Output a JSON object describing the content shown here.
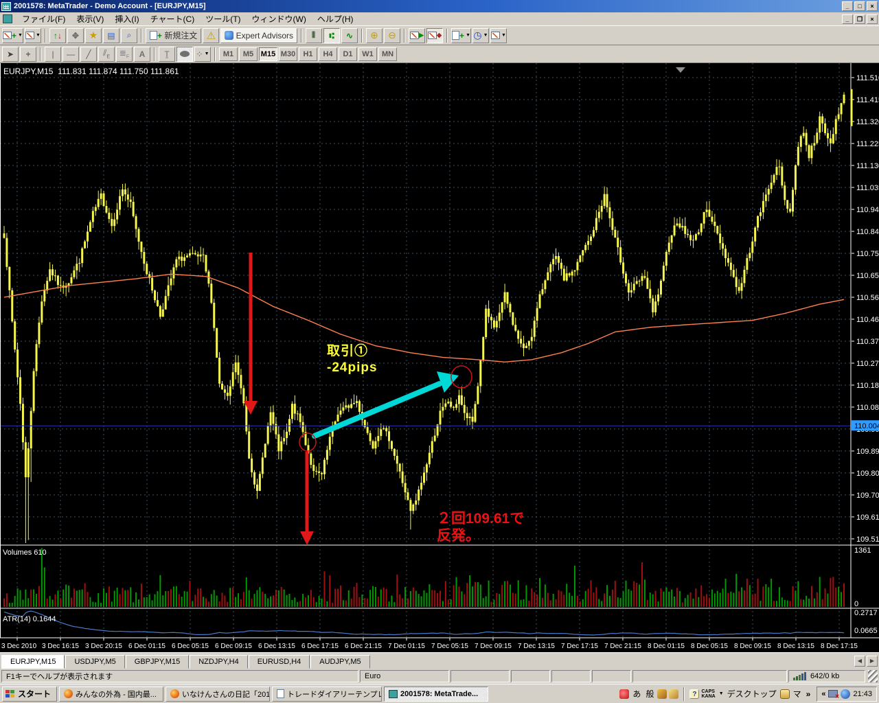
{
  "window": {
    "title": "2001578: MetaTrader - Demo Account - [EURJPY,M15]"
  },
  "menu": {
    "items": [
      "ファイル(F)",
      "表示(V)",
      "挿入(I)",
      "チャート(C)",
      "ツール(T)",
      "ウィンドウ(W)",
      "ヘルプ(H)"
    ]
  },
  "toolbar": {
    "new_order_label": "新規注文",
    "expert_advisors_label": "Expert Advisors",
    "timeframes": [
      "M1",
      "M5",
      "M15",
      "M30",
      "H1",
      "H4",
      "D1",
      "W1",
      "MN"
    ],
    "active_timeframe": "M15"
  },
  "chart": {
    "symbol_label": "EURJPY,M15",
    "ohlc": "111.831 111.874 111.750 111.861",
    "bid_price": "110.004",
    "price_ticks": [
      "111.510",
      "111.415",
      "111.320",
      "111.225",
      "111.130",
      "111.035",
      "110.940",
      "110.845",
      "110.750",
      "110.655",
      "110.560",
      "110.465",
      "110.370",
      "110.275",
      "110.180",
      "110.085",
      "109.990",
      "109.895",
      "109.800",
      "109.705",
      "109.610",
      "109.515"
    ],
    "time_labels": [
      "3 Dec 2010",
      "3 Dec 16:15",
      "3 Dec 20:15",
      "6 Dec 01:15",
      "6 Dec 05:15",
      "6 Dec 09:15",
      "6 Dec 13:15",
      "6 Dec 17:15",
      "6 Dec 21:15",
      "7 Dec 01:15",
      "7 Dec 05:15",
      "7 Dec 09:15",
      "7 Dec 13:15",
      "7 Dec 17:15",
      "7 Dec 21:15",
      "8 Dec 01:15",
      "8 Dec 05:15",
      "8 Dec 09:15",
      "8 Dec 13:15",
      "8 Dec 17:15"
    ],
    "volumes_label": "Volumes 610",
    "volumes_max": "1361",
    "volumes_min": "0",
    "atr_label": "ATR(14) 0.1644",
    "atr_max": "0.2717",
    "atr_min": "0.0665",
    "annotations": {
      "trade_line1": "取引①",
      "trade_line2": "-24pips",
      "bounce_line1": "２回109.61で",
      "bounce_line2": "反発。"
    },
    "colors": {
      "candle": "#f6f64e",
      "ma_line": "#ff8050",
      "grid": "#3e5262",
      "bid_line": "#2233bb",
      "bid_label_bg": "#2f9bff",
      "volume_up": "#009a00",
      "volume_down": "#a01010",
      "atr_line": "#4878c8",
      "annotation_red": "#e01818",
      "annotation_cyan": "#00d8d8"
    }
  },
  "chart_data": {
    "type": "candlestick",
    "symbol": "EURJPY",
    "period": "M15",
    "y_axis_range": [
      109.49,
      111.57
    ],
    "x_range": [
      "3 Dec 2010 13:00",
      "8 Dec 2010 17:15"
    ],
    "bars": 313,
    "price_path": [
      [
        0,
        110.83
      ],
      [
        3,
        110.45
      ],
      [
        6,
        110.1
      ],
      [
        8,
        109.78
      ],
      [
        9,
        109.9
      ],
      [
        11,
        110.25
      ],
      [
        14,
        110.55
      ],
      [
        17,
        110.68
      ],
      [
        21,
        110.6
      ],
      [
        24,
        110.63
      ],
      [
        28,
        110.72
      ],
      [
        33,
        110.92
      ],
      [
        36,
        111.0
      ],
      [
        40,
        110.87
      ],
      [
        44,
        111.03
      ],
      [
        47,
        110.96
      ],
      [
        49,
        110.85
      ],
      [
        53,
        110.67
      ],
      [
        58,
        110.48
      ],
      [
        61,
        110.6
      ],
      [
        64,
        110.72
      ],
      [
        69,
        110.74
      ],
      [
        74,
        110.73
      ],
      [
        77,
        110.55
      ],
      [
        80,
        110.18
      ],
      [
        83,
        110.12
      ],
      [
        86,
        110.28
      ],
      [
        89,
        110.1
      ],
      [
        91,
        109.87
      ],
      [
        94,
        109.71
      ],
      [
        97,
        109.94
      ],
      [
        99,
        110.06
      ],
      [
        102,
        109.9
      ],
      [
        105,
        109.97
      ],
      [
        107,
        110.09
      ],
      [
        110,
        110.02
      ],
      [
        112,
        109.93
      ],
      [
        115,
        109.8
      ],
      [
        118,
        109.79
      ],
      [
        121,
        109.95
      ],
      [
        124,
        110.06
      ],
      [
        128,
        110.09
      ],
      [
        131,
        110.11
      ],
      [
        134,
        110.0
      ],
      [
        137,
        109.92
      ],
      [
        140,
        110.0
      ],
      [
        143,
        109.95
      ],
      [
        146,
        109.84
      ],
      [
        149,
        109.72
      ],
      [
        151,
        109.63
      ],
      [
        153,
        109.68
      ],
      [
        156,
        109.8
      ],
      [
        159,
        109.93
      ],
      [
        162,
        110.06
      ],
      [
        165,
        110.11
      ],
      [
        167,
        110.07
      ],
      [
        169,
        110.14
      ],
      [
        171,
        110.05
      ],
      [
        174,
        110.02
      ],
      [
        176,
        110.18
      ],
      [
        179,
        110.5
      ],
      [
        182,
        110.42
      ],
      [
        186,
        110.57
      ],
      [
        190,
        110.41
      ],
      [
        193,
        110.33
      ],
      [
        196,
        110.4
      ],
      [
        199,
        110.56
      ],
      [
        202,
        110.68
      ],
      [
        205,
        110.73
      ],
      [
        208,
        110.64
      ],
      [
        212,
        110.68
      ],
      [
        215,
        110.76
      ],
      [
        218,
        110.82
      ],
      [
        221,
        110.93
      ],
      [
        223,
        111.0
      ],
      [
        226,
        110.85
      ],
      [
        229,
        110.72
      ],
      [
        232,
        110.58
      ],
      [
        235,
        110.62
      ],
      [
        238,
        110.65
      ],
      [
        241,
        110.49
      ],
      [
        244,
        110.62
      ],
      [
        247,
        110.81
      ],
      [
        250,
        110.89
      ],
      [
        253,
        110.84
      ],
      [
        256,
        110.8
      ],
      [
        259,
        110.88
      ],
      [
        261,
        110.95
      ],
      [
        264,
        110.86
      ],
      [
        267,
        110.77
      ],
      [
        270,
        110.68
      ],
      [
        273,
        110.58
      ],
      [
        276,
        110.72
      ],
      [
        280,
        110.9
      ],
      [
        283,
        111.0
      ],
      [
        286,
        111.1
      ],
      [
        288,
        111.12
      ],
      [
        290,
        110.98
      ],
      [
        292,
        110.93
      ],
      [
        295,
        111.22
      ],
      [
        297,
        111.28
      ],
      [
        299,
        111.17
      ],
      [
        301,
        111.24
      ],
      [
        303,
        111.33
      ],
      [
        305,
        111.27
      ],
      [
        307,
        111.22
      ],
      [
        309,
        111.33
      ],
      [
        312,
        111.43
      ]
    ],
    "ma_path": [
      [
        0,
        110.56
      ],
      [
        24,
        110.61
      ],
      [
        49,
        110.64
      ],
      [
        62,
        110.66
      ],
      [
        75,
        110.65
      ],
      [
        87,
        110.6
      ],
      [
        100,
        110.52
      ],
      [
        113,
        110.46
      ],
      [
        125,
        110.4
      ],
      [
        138,
        110.35
      ],
      [
        151,
        110.32
      ],
      [
        163,
        110.3
      ],
      [
        176,
        110.29
      ],
      [
        186,
        110.28
      ],
      [
        196,
        110.29
      ],
      [
        207,
        110.32
      ],
      [
        217,
        110.36
      ],
      [
        227,
        110.41
      ],
      [
        240,
        110.43
      ],
      [
        252,
        110.44
      ],
      [
        265,
        110.45
      ],
      [
        278,
        110.46
      ],
      [
        290,
        110.49
      ],
      [
        303,
        110.53
      ],
      [
        312,
        110.55
      ]
    ],
    "bid_price": 110.004,
    "volumes": {
      "max": 1361,
      "min": 0,
      "current": 610
    },
    "atr": {
      "period": 14,
      "max": 0.2717,
      "min": 0.0665,
      "current": 0.1644
    }
  },
  "tabs": {
    "items": [
      "EURJPY,M15",
      "USDJPY,M5",
      "GBPJPY,M15",
      "NZDJPY,H4",
      "EURUSD,H4",
      "AUDJPY,M5"
    ],
    "active": "EURJPY,M15"
  },
  "status_bar": {
    "help_text": "F1キーでヘルプが表示されます",
    "symbol_info": "Euro",
    "traffic": "642/0 kb"
  },
  "taskbar": {
    "start_label": "スタート",
    "buttons": [
      "みんなの外為 - 国内最...",
      "いなけんさんの日記「2010...",
      "トレードダイアリーテンプレー...",
      "2001578: MetaTrade..."
    ],
    "tray": {
      "ime_a": "あ",
      "ime_mode": "般",
      "caps": "CAPS",
      "kana": "KANA",
      "desktop_label": "デスクトップ",
      "ime_ma": "マ",
      "chevron_right": "»",
      "chevron_left": "«",
      "time": "21:43"
    }
  }
}
